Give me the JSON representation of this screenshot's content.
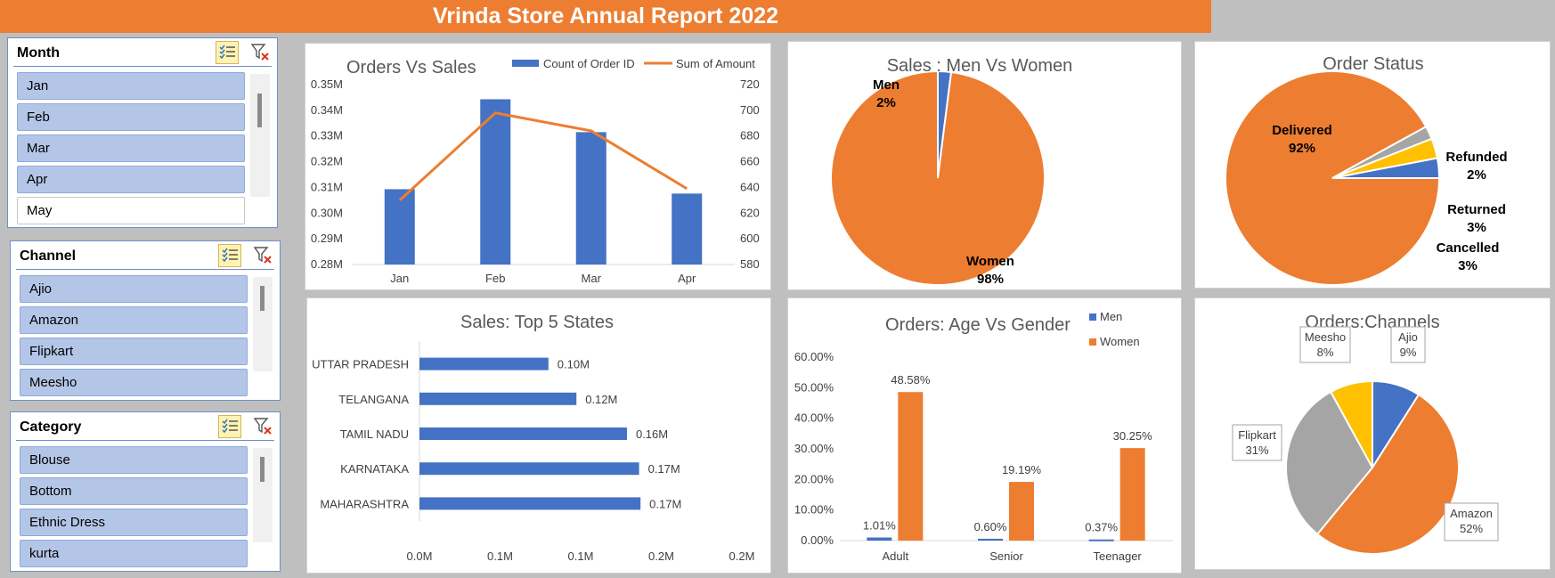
{
  "banner": {
    "title": "Vrinda Store Annual Report 2022",
    "color": "#ed7d31"
  },
  "slicers": [
    {
      "title": "Month",
      "items": [
        {
          "label": "Jan",
          "selected": true
        },
        {
          "label": "Feb",
          "selected": true
        },
        {
          "label": "Mar",
          "selected": true
        },
        {
          "label": "Apr",
          "selected": true
        },
        {
          "label": "May",
          "selected": false
        }
      ]
    },
    {
      "title": "Channel",
      "items": [
        {
          "label": "Ajio",
          "selected": true
        },
        {
          "label": "Amazon",
          "selected": true
        },
        {
          "label": "Flipkart",
          "selected": true
        },
        {
          "label": "Meesho",
          "selected": true
        }
      ]
    },
    {
      "title": "Category",
      "items": [
        {
          "label": "Blouse",
          "selected": true
        },
        {
          "label": "Bottom",
          "selected": true
        },
        {
          "label": "Ethnic Dress",
          "selected": true
        },
        {
          "label": "kurta",
          "selected": true
        }
      ]
    }
  ],
  "icons": {
    "multiselect": "multi-select-icon",
    "clear": "clear-filter-icon"
  },
  "chart_data": [
    {
      "id": "orders_vs_sales",
      "type": "bar+line",
      "title": "Orders Vs Sales",
      "categories": [
        "Jan",
        "Feb",
        "Mar",
        "Apr"
      ],
      "series": [
        {
          "name": "Count of Order ID",
          "type": "bar",
          "axis": "left",
          "color": "#4472c4",
          "values": [
            0.3093,
            0.3443,
            0.3315,
            0.3076
          ]
        },
        {
          "name": "Sum of Amount",
          "type": "line",
          "axis": "right",
          "color": "#ed7d31",
          "values": [
            630,
            698,
            684,
            639
          ]
        }
      ],
      "y_left": {
        "min": 0.28,
        "max": 0.35,
        "ticks": [
          "0.28M",
          "0.29M",
          "0.30M",
          "0.31M",
          "0.32M",
          "0.33M",
          "0.34M",
          "0.35M"
        ]
      },
      "y_right": {
        "min": 580,
        "max": 720,
        "ticks": [
          "580",
          "600",
          "620",
          "640",
          "660",
          "680",
          "700",
          "720"
        ]
      },
      "legend": "top-right"
    },
    {
      "id": "men_vs_women",
      "type": "pie",
      "title": "Sales : Men Vs Women",
      "slices": [
        {
          "label": "Men",
          "value": 2,
          "text": "2%",
          "color": "#4472c4"
        },
        {
          "label": "Women",
          "value": 98,
          "text": "98%",
          "color": "#ed7d31"
        }
      ]
    },
    {
      "id": "order_status",
      "type": "pie",
      "title": "Order Status",
      "slices": [
        {
          "label": "Delivered",
          "value": 92,
          "text": "92%",
          "color": "#ed7d31"
        },
        {
          "label": "Refunded",
          "value": 2,
          "text": "2%",
          "color": "#a5a5a5"
        },
        {
          "label": "Returned",
          "value": 3,
          "text": "3%",
          "color": "#ffc000"
        },
        {
          "label": "Cancelled",
          "value": 3,
          "text": "3%",
          "color": "#4472c4"
        }
      ]
    },
    {
      "id": "top5_states",
      "type": "bar",
      "orientation": "horizontal",
      "title": "Sales: Top 5 States",
      "categories": [
        "UTTAR PRADESH",
        "TELANGANA",
        "TAMIL NADU",
        "KARNATAKA",
        "MAHARASHTRA"
      ],
      "values": [
        0.1,
        0.12,
        0.16,
        0.17,
        0.17
      ],
      "plot_values": [
        0.1,
        0.1217,
        0.1609,
        0.1703,
        0.1714
      ],
      "value_labels": [
        "0.10M",
        "0.12M",
        "0.16M",
        "0.17M",
        "0.17M"
      ],
      "x_ticks": [
        "0.0M",
        "0.1M",
        "0.1M",
        "0.2M",
        "0.2M"
      ],
      "xlim": [
        0,
        0.25
      ],
      "color": "#4472c4"
    },
    {
      "id": "age_vs_gender",
      "type": "bar",
      "title": "Orders: Age Vs Gender",
      "categories": [
        "Adult",
        "Senior",
        "Teenager"
      ],
      "series": [
        {
          "name": "Men",
          "color": "#4472c4",
          "values": [
            1.01,
            0.6,
            0.37
          ],
          "labels": [
            "1.01%",
            "0.60%",
            "0.37%"
          ]
        },
        {
          "name": "Women",
          "color": "#ed7d31",
          "values": [
            48.58,
            19.19,
            30.25
          ],
          "labels": [
            "48.58%",
            "19.19%",
            "30.25%"
          ]
        }
      ],
      "ylim": [
        0,
        60
      ],
      "y_ticks": [
        "0.00%",
        "10.00%",
        "20.00%",
        "30.00%",
        "40.00%",
        "50.00%",
        "60.00%"
      ],
      "legend": "top-right"
    },
    {
      "id": "orders_channels",
      "type": "pie",
      "title": "Orders:Channels",
      "slices": [
        {
          "label": "Ajio",
          "value": 9,
          "text": "9%",
          "color": "#4472c4"
        },
        {
          "label": "Amazon",
          "value": 52,
          "text": "52%",
          "color": "#ed7d31"
        },
        {
          "label": "Flipkart",
          "value": 31,
          "text": "31%",
          "color": "#a5a5a5"
        },
        {
          "label": "Meesho",
          "value": 8,
          "text": "8%",
          "color": "#ffc000"
        }
      ]
    }
  ]
}
